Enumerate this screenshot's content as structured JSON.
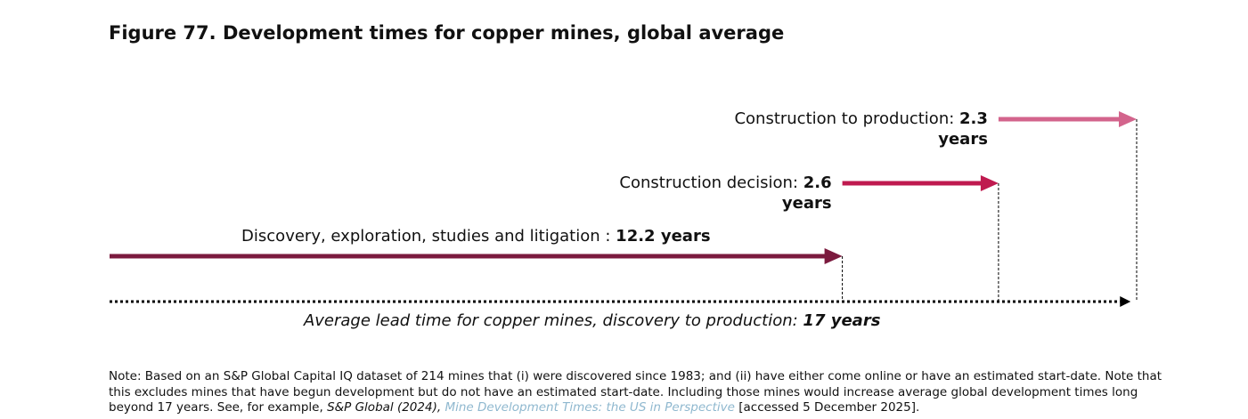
{
  "chart_data": {
    "type": "sequence-arrows",
    "title": "Figure 77. Development times for copper mines, global average",
    "segments": [
      {
        "label": "Discovery, exploration, studies and litigation :",
        "value": 12.2,
        "value_label": "12.2 years",
        "color": "#7b1a3e"
      },
      {
        "label": "Construction decision:",
        "value": 2.6,
        "value_label": "2.6 years",
        "color": "#bf1a4f"
      },
      {
        "label": "Construction to production:",
        "value": 2.3,
        "value_label": "2.3 years",
        "color": "#d3648c"
      }
    ],
    "total": {
      "label": "Average lead time for copper mines, discovery to production:",
      "value": 17,
      "value_label": "17 years",
      "color": "#000000"
    },
    "note": {
      "text": "Note: Based on an S&P Global Capital IQ dataset of 214 mines that (i) were discovered since 1983; and (ii) have either come online or have an estimated start-date. Note that this excludes mines that have begun development but do not have an estimated start-date. Including those mines would increase average global development times long beyond 17 years. See, for example,",
      "source": "S&P Global (2024),",
      "link": "Mine Development Times: the US in Perspective",
      "accessed": "[accessed 5 December 2025]."
    }
  }
}
